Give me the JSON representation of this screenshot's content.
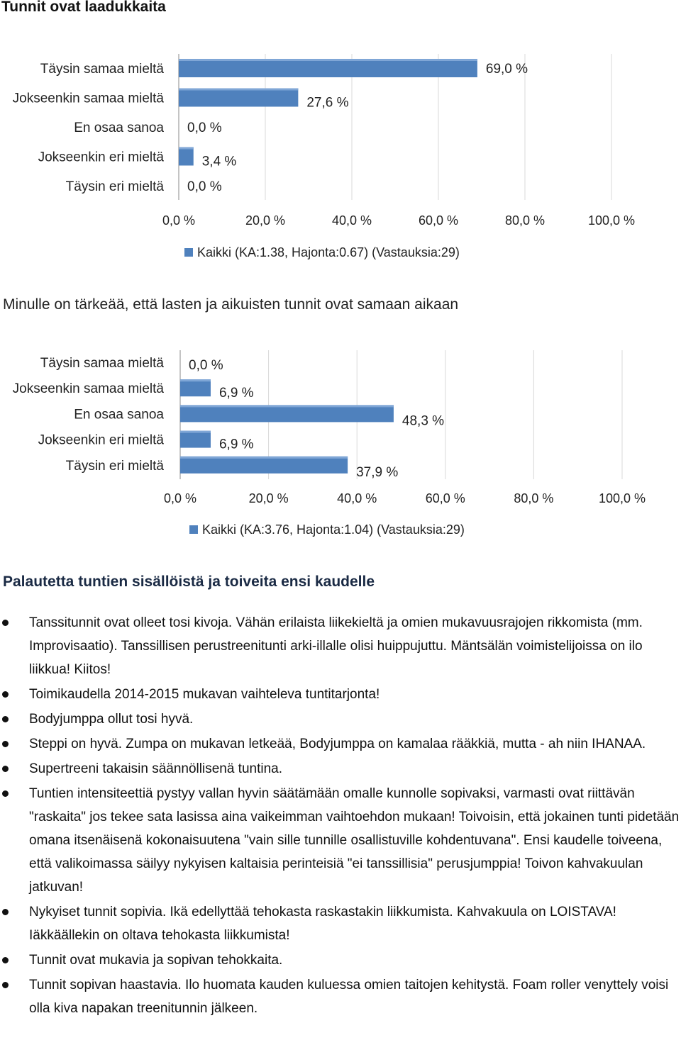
{
  "headings": {
    "section1": "Tunnit ovat laadukkaita",
    "section2": "Minulle on tärkeää, että lasten ja aikuisten tunnit ovat samaan aikaan",
    "section3": "Palautetta tuntien sisällöistä ja toiveita ensi kaudelle"
  },
  "colors": {
    "bar": "#4f81bd",
    "bar_highlight": "#7fa6d6",
    "grid": "#d9d9d9",
    "axis": "#888888"
  },
  "chart_data": [
    {
      "type": "bar",
      "orientation": "horizontal",
      "title": "Tunnit ovat laadukkaita",
      "categories": [
        "Täysin samaa mieltä",
        "Jokseenkin samaa mieltä",
        "En osaa sanoa",
        "Jokseenkin eri mieltä",
        "Täysin eri mieltä"
      ],
      "series": [
        {
          "name": "Kaikki (KA:1.38, Hajonta:0.67) (Vastauksia:29)",
          "values": [
            69.0,
            27.6,
            0.0,
            3.4,
            0.0
          ]
        }
      ],
      "value_labels": [
        "69,0 %",
        "27,6 %",
        "0,0 %",
        "3,4 %",
        "0,0 %"
      ],
      "xticks": [
        "0,0 %",
        "20,0 %",
        "40,0 %",
        "60,0 %",
        "80,0 %",
        "100,0 %"
      ],
      "xlim": [
        0,
        100
      ],
      "grid": true,
      "legend": "bottom"
    },
    {
      "type": "bar",
      "orientation": "horizontal",
      "title": "Minulle on tärkeää, että lasten ja aikuisten tunnit ovat samaan aikaan",
      "categories": [
        "Täysin samaa mieltä",
        "Jokseenkin samaa mieltä",
        "En osaa sanoa",
        "Jokseenkin eri mieltä",
        "Täysin eri mieltä"
      ],
      "series": [
        {
          "name": "Kaikki (KA:3.76, Hajonta:1.04) (Vastauksia:29)",
          "values": [
            0.0,
            6.9,
            48.3,
            6.9,
            37.9
          ]
        }
      ],
      "value_labels": [
        "0,0 %",
        "6,9 %",
        "48,3 %",
        "6,9 %",
        "37,9 %"
      ],
      "xticks": [
        "0,0 %",
        "20,0 %",
        "40,0 %",
        "60,0 %",
        "80,0 %",
        "100,0 %"
      ],
      "xlim": [
        0,
        100
      ],
      "grid": true,
      "legend": "bottom"
    }
  ],
  "feedback": [
    "Tanssitunnit ovat olleet tosi kivoja. Vähän erilaista liikekieltä ja omien mukavuusrajojen rikkomista (mm. Improvisaatio). Tanssillisen perustreenitunti arki-illalle olisi huippujuttu. Mäntsälän voimistelijoissa on ilo liikkua! Kiitos!",
    "Toimikaudella 2014-2015 mukavan vaihteleva tuntitarjonta!",
    "Bodyjumppa ollut tosi hyvä.",
    "Steppi on hyvä. Zumpa on mukavan letkeää, Bodyjumppa on kamalaa rääkkiä, mutta - ah niin IHANAA.",
    "Supertreeni takaisin säännöllisenä tuntina.",
    "Tuntien intensiteettiä pystyy vallan hyvin säätämään omalle kunnolle sopivaksi, varmasti ovat riittävän \"raskaita\" jos tekee sata lasissa aina vaikeimman vaihtoehdon mukaan! Toivoisin, että jokainen tunti pidetään omana itsenäisenä kokonaisuutena \"vain sille tunnille osallistuville kohdentuvana\". Ensi kaudelle toiveena, että valikoimassa säilyy nykyisen kaltaisia perinteisiä \"ei tanssillisia\" perusjumppia! Toivon kahvakuulan jatkuvan!",
    "Nykyiset tunnit sopivia. Ikä edellyttää tehokasta raskastakin liikkumista. Kahvakuula on LOISTAVA! Iäkkäällekin on oltava tehokasta liikkumista!",
    "Tunnit ovat mukavia ja sopivan tehokkaita.",
    "Tunnit sopivan haastavia. Ilo huomata kauden kuluessa omien taitojen kehitystä. Foam roller venyttely voisi olla kiva napakan treenitunnin jälkeen."
  ]
}
